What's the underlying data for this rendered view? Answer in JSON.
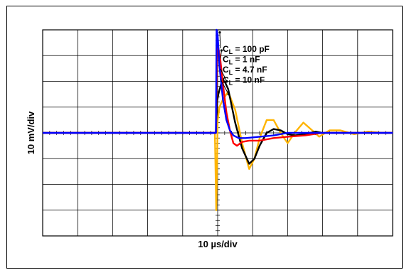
{
  "chart_data": {
    "type": "line",
    "xlabel": "10 µs/div",
    "ylabel": "10 mV/div",
    "x_divisions": 10,
    "y_divisions": 8,
    "xlim": [
      0,
      10
    ],
    "ylim": [
      -4,
      4
    ],
    "grid": true,
    "legend_placement": "top-center",
    "series": [
      {
        "name": "CL = 100 pF",
        "color": "#0000ff",
        "x": [
          0,
          1,
          2,
          3,
          4.9,
          4.95,
          4.97,
          5.0,
          5.05,
          5.15,
          5.25,
          5.35,
          5.45,
          5.6,
          5.8,
          6.2,
          6.6,
          7.0,
          8.0,
          9.0,
          10.0
        ],
        "y": [
          0,
          0,
          0,
          0,
          0,
          0,
          4.0,
          3.8,
          2.6,
          1.3,
          0.5,
          0.1,
          -0.1,
          -0.2,
          -0.2,
          -0.15,
          -0.1,
          0,
          0,
          0,
          0
        ]
      },
      {
        "name": "CL = 1 nF",
        "color": "#ff0000",
        "x": [
          0,
          1,
          2,
          3,
          4.9,
          4.95,
          4.98,
          5.02,
          5.08,
          5.15,
          5.25,
          5.35,
          5.45,
          5.55,
          5.7,
          5.9,
          6.2,
          6.6,
          7.0,
          7.5,
          8.0,
          9.0,
          10.0
        ],
        "y": [
          0,
          0,
          0,
          0,
          0,
          0,
          3.2,
          3.3,
          2.8,
          1.9,
          0.8,
          0.1,
          -0.4,
          -0.5,
          -0.35,
          -0.3,
          -0.3,
          -0.2,
          -0.15,
          -0.1,
          0,
          0,
          0
        ]
      },
      {
        "name": "CL = 4.7 nF",
        "color": "#000000",
        "x": [
          0,
          1,
          2,
          3,
          4.9,
          4.95,
          4.98,
          5.02,
          5.1,
          5.2,
          5.3,
          5.5,
          5.7,
          5.9,
          6.05,
          6.2,
          6.4,
          6.6,
          6.8,
          7.0,
          7.2,
          7.5,
          7.8,
          8.0,
          8.5,
          9.0,
          10.0
        ],
        "y": [
          0,
          0,
          0,
          0,
          0,
          0,
          1.2,
          1.5,
          1.9,
          2.0,
          1.7,
          0.4,
          -0.6,
          -1.2,
          -1.0,
          -0.5,
          0.0,
          0.15,
          0.1,
          -0.05,
          -0.1,
          -0.05,
          0.05,
          0,
          0,
          0,
          0
        ]
      },
      {
        "name": "CL = 10 nF",
        "color": "#ffb400",
        "x": [
          0,
          1,
          2,
          3,
          4.85,
          4.92,
          4.96,
          4.98,
          5.0,
          5.05,
          5.15,
          5.3,
          5.5,
          5.7,
          5.9,
          6.05,
          6.2,
          6.4,
          6.6,
          6.8,
          7.0,
          7.2,
          7.45,
          7.7,
          7.9,
          8.2,
          8.5,
          8.9,
          9.3,
          9.7,
          10.0
        ],
        "y": [
          0,
          0,
          0,
          0,
          0,
          0,
          -3.0,
          -1.5,
          0.5,
          1.0,
          1.3,
          1.6,
          0.9,
          -0.4,
          -1.4,
          -1.0,
          -0.2,
          0.5,
          0.5,
          0.0,
          -0.4,
          0.0,
          0.4,
          0.1,
          -0.15,
          0.1,
          0.1,
          -0.05,
          0.05,
          0,
          0
        ]
      }
    ]
  },
  "legend": {
    "items": [
      {
        "main": "C",
        "sub": "L",
        "rest": " = 100 pF"
      },
      {
        "main": "C",
        "sub": "L",
        "rest": " = 1 nF"
      },
      {
        "main": "C",
        "sub": "L",
        "rest": " = 4.7 nF"
      },
      {
        "main": "C",
        "sub": "L",
        "rest": " = 10 nF"
      }
    ]
  }
}
